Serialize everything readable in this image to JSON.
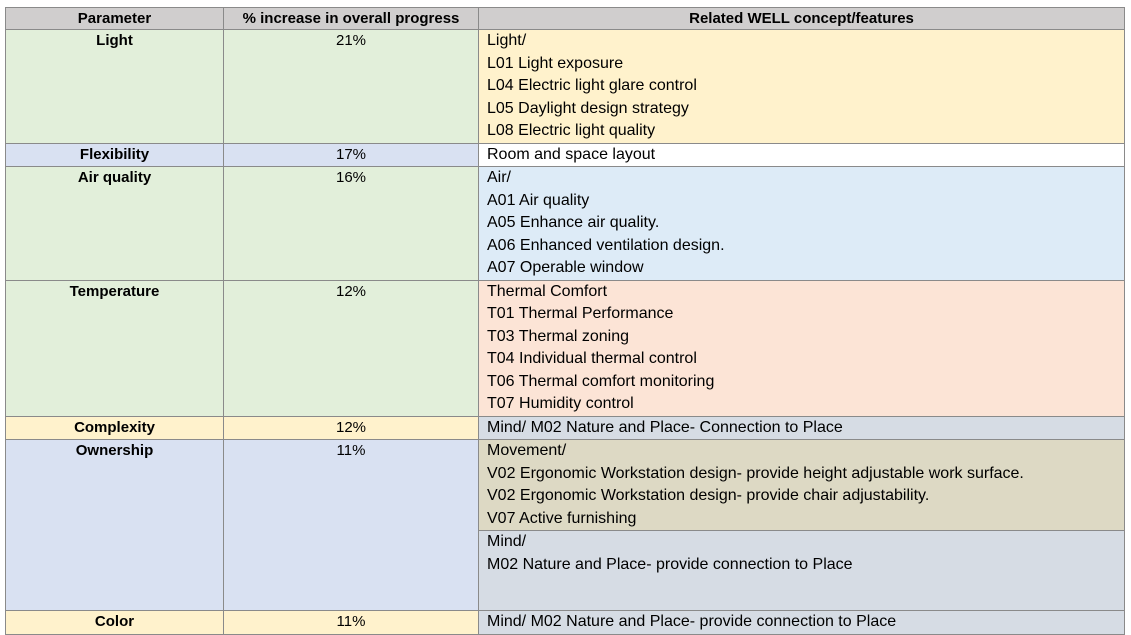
{
  "headers": {
    "parameter": "Parameter",
    "increase": "% increase in overall progress",
    "related": "Related WELL concept/features"
  },
  "rows": [
    {
      "parameter": "Light",
      "increase": "21%",
      "features": [
        "Light/",
        "L01 Light exposure",
        "L04 Electric light glare control",
        "L05 Daylight design strategy",
        "L08 Electric light quality"
      ]
    },
    {
      "parameter": "Flexibility",
      "increase": "17%",
      "features": [
        "Room and space layout"
      ]
    },
    {
      "parameter": "Air quality",
      "increase": "16%",
      "features": [
        "Air/",
        "A01 Air quality",
        "A05 Enhance air quality.",
        "A06 Enhanced ventilation design.",
        "A07 Operable window"
      ]
    },
    {
      "parameter": "Temperature",
      "increase": "12%",
      "features": [
        "Thermal Comfort",
        "T01 Thermal Performance",
        "T03 Thermal zoning",
        "T04 Individual thermal control",
        "T06 Thermal comfort monitoring",
        "T07 Humidity control"
      ]
    },
    {
      "parameter": "Complexity",
      "increase": "12%",
      "features": [
        "Mind/ M02 Nature and Place- Connection to Place"
      ]
    },
    {
      "parameter": "Ownership",
      "increase": "11%",
      "features_a": [
        "Movement/",
        "V02 Ergonomic Workstation design- provide height adjustable work surface.",
        "V02 Ergonomic Workstation design- provide chair adjustability.",
        "V07 Active furnishing"
      ],
      "features_b": [
        "Mind/",
        "M02 Nature and Place- provide connection to Place"
      ]
    },
    {
      "parameter": "Color",
      "increase": "11%",
      "features": [
        "Mind/ M02 Nature and Place- provide connection to Place"
      ]
    }
  ],
  "colors": {
    "header": "#d0cece",
    "green": "#e2efda",
    "blue": "#d9e1f2",
    "yellow": "#fff2cc",
    "light_blue": "#ddebf7",
    "orange": "#fce4d6",
    "gray": "#d6dce4",
    "tan": "#ddd9c4"
  }
}
